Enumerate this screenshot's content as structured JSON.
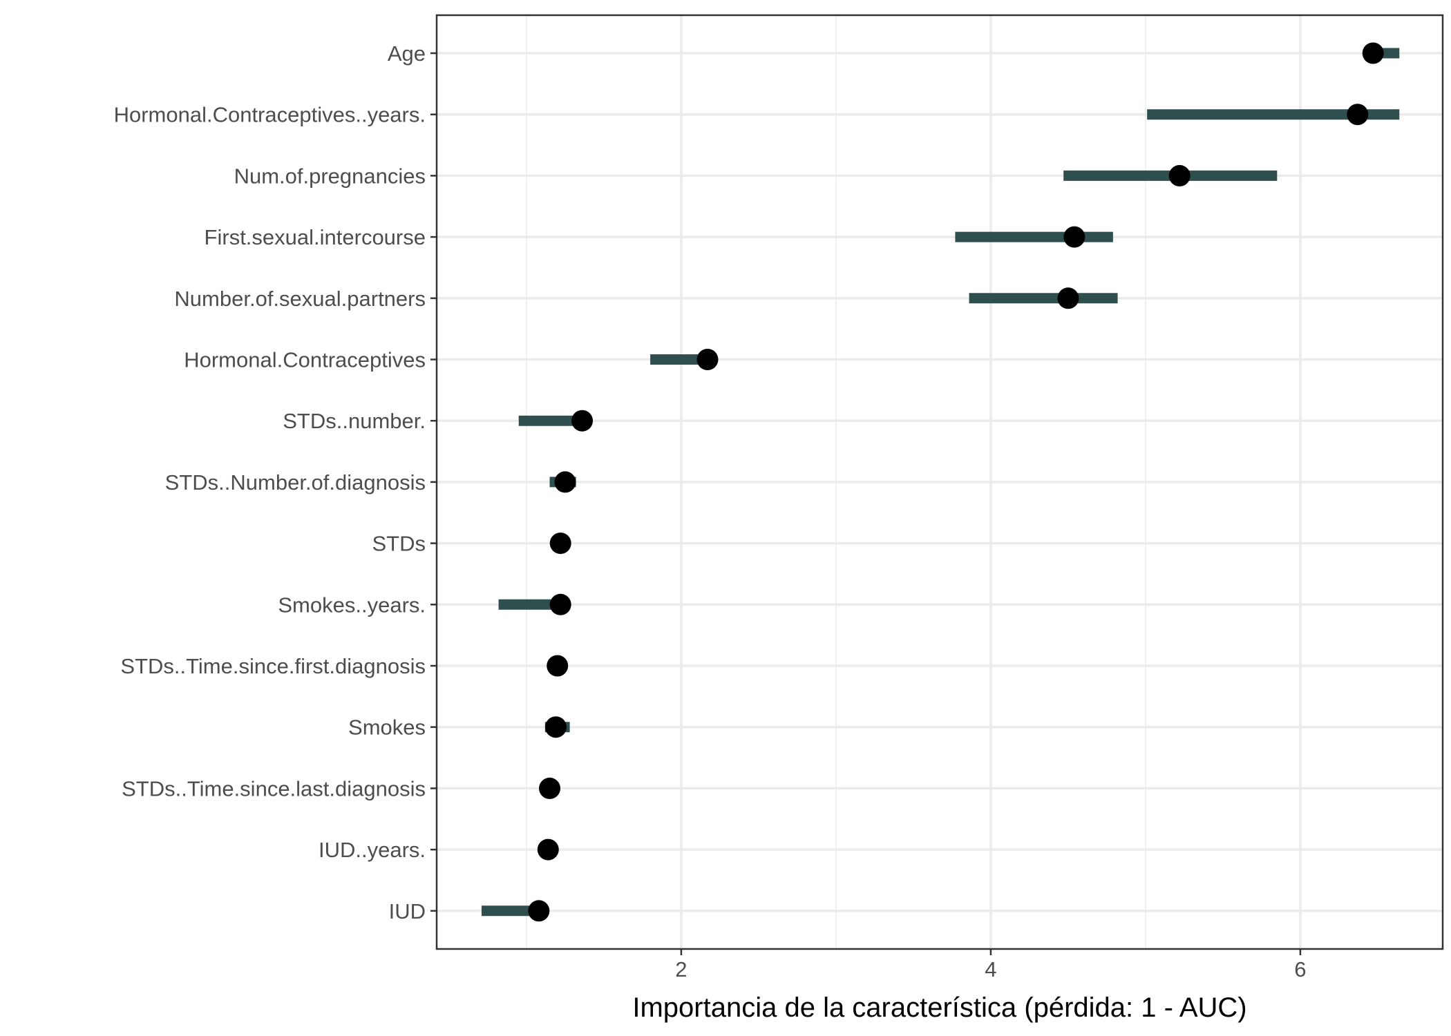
{
  "chart_data": {
    "type": "dot-interval",
    "xlabel": "Importancia de la característica (pérdida: 1 - AUC)",
    "ylabel": "",
    "xlim": [
      0.42,
      6.92
    ],
    "x_ticks": [
      2,
      4,
      6
    ],
    "x_minor_ticks": [
      1,
      3,
      5
    ],
    "grid": true,
    "colors": {
      "interval": "#2f4f4f",
      "point": "#000000",
      "grid": "#ebebeb",
      "panel_border": "#333333"
    },
    "features": [
      {
        "name": "Age",
        "importance": 6.47,
        "lower": 6.45,
        "upper": 6.64
      },
      {
        "name": "Hormonal.Contraceptives..years.",
        "importance": 6.37,
        "lower": 5.01,
        "upper": 6.64
      },
      {
        "name": "Num.of.pregnancies",
        "importance": 5.22,
        "lower": 4.47,
        "upper": 5.85
      },
      {
        "name": "First.sexual.intercourse",
        "importance": 4.54,
        "lower": 3.77,
        "upper": 4.79
      },
      {
        "name": "Number.of.sexual.partners",
        "importance": 4.5,
        "lower": 3.86,
        "upper": 4.82
      },
      {
        "name": "Hormonal.Contraceptives",
        "importance": 2.17,
        "lower": 1.8,
        "upper": 2.17
      },
      {
        "name": "STDs..number.",
        "importance": 1.36,
        "lower": 0.95,
        "upper": 1.36
      },
      {
        "name": "STDs..Number.of.diagnosis",
        "importance": 1.25,
        "lower": 1.15,
        "upper": 1.32
      },
      {
        "name": "STDs",
        "importance": 1.22,
        "lower": 1.22,
        "upper": 1.22
      },
      {
        "name": "Smokes..years.",
        "importance": 1.22,
        "lower": 0.82,
        "upper": 1.22
      },
      {
        "name": "STDs..Time.since.first.diagnosis",
        "importance": 1.2,
        "lower": 1.2,
        "upper": 1.2
      },
      {
        "name": "Smokes",
        "importance": 1.19,
        "lower": 1.12,
        "upper": 1.28
      },
      {
        "name": "STDs..Time.since.last.diagnosis",
        "importance": 1.15,
        "lower": 1.15,
        "upper": 1.15
      },
      {
        "name": "IUD..years.",
        "importance": 1.14,
        "lower": 1.14,
        "upper": 1.14
      },
      {
        "name": "IUD",
        "importance": 1.08,
        "lower": 0.71,
        "upper": 1.08
      }
    ]
  }
}
